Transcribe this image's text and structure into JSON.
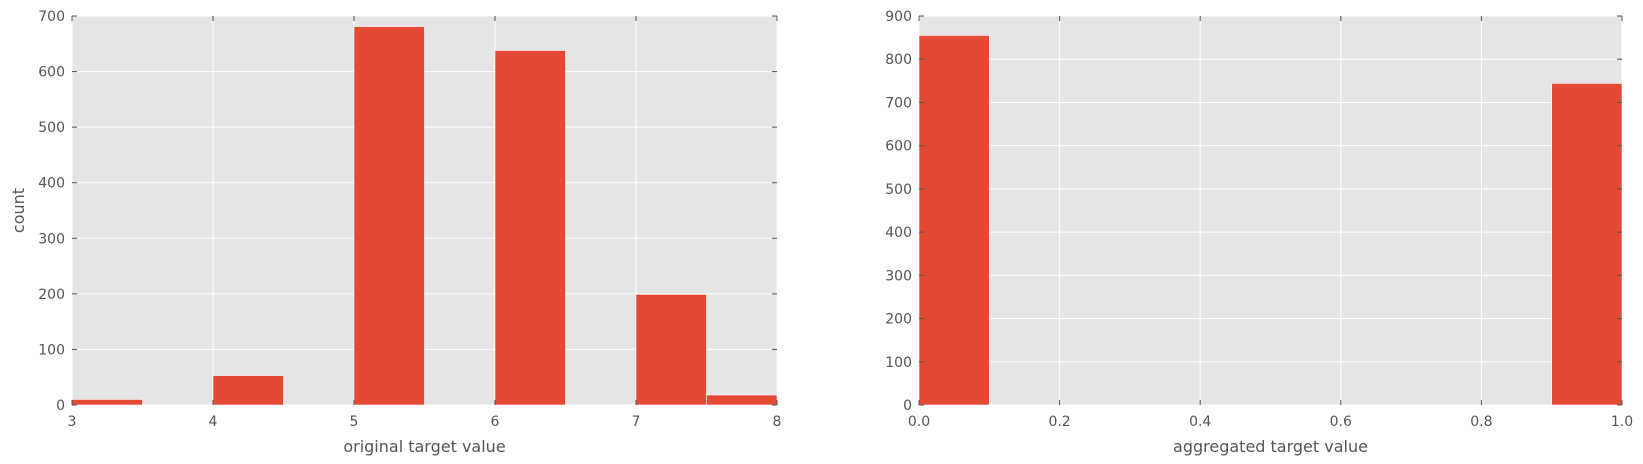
{
  "chart_data": [
    {
      "type": "bar",
      "title": "",
      "xlabel": "original target value",
      "ylabel": "count",
      "xlim": [
        3,
        8
      ],
      "ylim": [
        0,
        700
      ],
      "grid": true,
      "x_ticks": [
        "3",
        "4",
        "5",
        "6",
        "7",
        "8"
      ],
      "y_ticks": [
        "0",
        "100",
        "200",
        "300",
        "400",
        "500",
        "600",
        "700"
      ],
      "bins": [
        {
          "x0": 3.0,
          "x1": 3.5,
          "value": 10
        },
        {
          "x0": 3.5,
          "x1": 4.0,
          "value": 0
        },
        {
          "x0": 4.0,
          "x1": 4.5,
          "value": 53
        },
        {
          "x0": 4.5,
          "x1": 5.0,
          "value": 0
        },
        {
          "x0": 5.0,
          "x1": 5.5,
          "value": 681
        },
        {
          "x0": 5.5,
          "x1": 6.0,
          "value": 0
        },
        {
          "x0": 6.0,
          "x1": 6.5,
          "value": 638
        },
        {
          "x0": 6.5,
          "x1": 7.0,
          "value": 0
        },
        {
          "x0": 7.0,
          "x1": 7.5,
          "value": 199
        },
        {
          "x0": 7.5,
          "x1": 8.0,
          "value": 18
        }
      ],
      "colors": {
        "bar": "#e24a33",
        "background": "#e5e5e5",
        "grid": "#ffffff"
      }
    },
    {
      "type": "bar",
      "title": "",
      "xlabel": "aggregated target value",
      "ylabel": "",
      "xlim": [
        0,
        1
      ],
      "ylim": [
        0,
        900
      ],
      "grid": true,
      "x_ticks": [
        "0.0",
        "0.2",
        "0.4",
        "0.6",
        "0.8",
        "1.0"
      ],
      "y_ticks": [
        "0",
        "100",
        "200",
        "300",
        "400",
        "500",
        "600",
        "700",
        "800",
        "900"
      ],
      "bins": [
        {
          "x0": 0.0,
          "x1": 0.1,
          "value": 855
        },
        {
          "x0": 0.1,
          "x1": 0.2,
          "value": 0
        },
        {
          "x0": 0.2,
          "x1": 0.3,
          "value": 0
        },
        {
          "x0": 0.3,
          "x1": 0.4,
          "value": 0
        },
        {
          "x0": 0.4,
          "x1": 0.5,
          "value": 0
        },
        {
          "x0": 0.5,
          "x1": 0.6,
          "value": 0
        },
        {
          "x0": 0.6,
          "x1": 0.7,
          "value": 0
        },
        {
          "x0": 0.7,
          "x1": 0.8,
          "value": 0
        },
        {
          "x0": 0.8,
          "x1": 0.9,
          "value": 0
        },
        {
          "x0": 0.9,
          "x1": 1.0,
          "value": 744
        }
      ],
      "colors": {
        "bar": "#e24a33",
        "background": "#e5e5e5",
        "grid": "#ffffff"
      }
    }
  ]
}
